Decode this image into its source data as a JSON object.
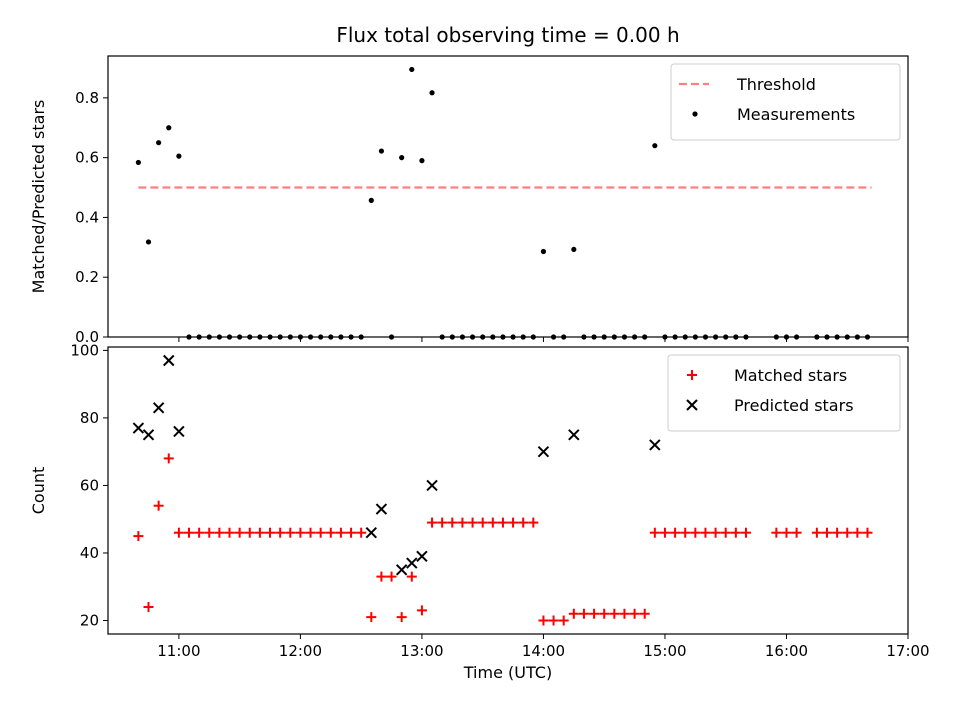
{
  "chart_data": [
    {
      "type": "scatter",
      "title": "Flux total observing time = 0.00 h",
      "xlabel": "",
      "ylabel": "Matched/Predicted stars",
      "xlim": [
        "10:25",
        "17:00"
      ],
      "ylim": [
        0,
        0.94
      ],
      "yticks": [
        0.0,
        0.2,
        0.4,
        0.6,
        0.8
      ],
      "legend_position": "top-right",
      "series": [
        {
          "name": "Threshold",
          "kind": "line",
          "style": "dashed",
          "color": "#ff7f7f",
          "x": [
            "10:40",
            "16:42"
          ],
          "y": [
            0.5,
            0.5
          ]
        },
        {
          "name": "Measurements",
          "kind": "scatter",
          "marker": "dot",
          "color": "#000000",
          "x": [
            "10:40",
            "10:45",
            "10:50",
            "10:55",
            "11:00",
            "11:05",
            "11:10",
            "11:15",
            "11:20",
            "11:25",
            "11:30",
            "11:35",
            "11:40",
            "11:45",
            "11:50",
            "11:55",
            "12:00",
            "12:05",
            "12:10",
            "12:15",
            "12:20",
            "12:25",
            "12:30",
            "12:35",
            "12:40",
            "12:45",
            "12:50",
            "12:55",
            "13:00",
            "13:05",
            "13:10",
            "13:15",
            "13:20",
            "13:25",
            "13:30",
            "13:35",
            "13:40",
            "13:45",
            "13:50",
            "13:55",
            "14:00",
            "14:05",
            "14:10",
            "14:15",
            "14:20",
            "14:25",
            "14:30",
            "14:35",
            "14:40",
            "14:45",
            "14:50",
            "14:55",
            "15:00",
            "15:05",
            "15:10",
            "15:15",
            "15:20",
            "15:25",
            "15:30",
            "15:35",
            "15:40",
            "15:55",
            "16:00",
            "16:05",
            "16:15",
            "16:20",
            "16:25",
            "16:30",
            "16:35",
            "16:40"
          ],
          "y": [
            0.584,
            0.318,
            0.65,
            0.7,
            0.605,
            0,
            0,
            0,
            0,
            0,
            0,
            0,
            0,
            0,
            0,
            0,
            0,
            0,
            0,
            0,
            0,
            0,
            0,
            0.457,
            0.622,
            0,
            0.6,
            0.895,
            0.59,
            0.817,
            0,
            0,
            0,
            0,
            0,
            0,
            0,
            0,
            0,
            0,
            0.286,
            0,
            0,
            0.293,
            0,
            0,
            0,
            0,
            0,
            0,
            0,
            0.64,
            0,
            0,
            0,
            0,
            0,
            0,
            0,
            0,
            0,
            0,
            0,
            0,
            0,
            0,
            0,
            0,
            0,
            0
          ]
        }
      ]
    },
    {
      "type": "scatter",
      "title": "",
      "xlabel": "Time (UTC)",
      "ylabel": "Count",
      "xlim": [
        "10:25",
        "17:00"
      ],
      "ylim": [
        16,
        101
      ],
      "xticks": [
        "11:00",
        "12:00",
        "13:00",
        "14:00",
        "15:00",
        "16:00",
        "17:00"
      ],
      "yticks": [
        20,
        40,
        60,
        80,
        100
      ],
      "legend_position": "top-right",
      "series": [
        {
          "name": "Matched stars",
          "kind": "scatter",
          "marker": "plus",
          "color": "#ff0000",
          "x": [
            "10:40",
            "10:45",
            "10:50",
            "10:55",
            "11:00",
            "11:05",
            "11:10",
            "11:15",
            "11:20",
            "11:25",
            "11:30",
            "11:35",
            "11:40",
            "11:45",
            "11:50",
            "11:55",
            "12:00",
            "12:05",
            "12:10",
            "12:15",
            "12:20",
            "12:25",
            "12:30",
            "12:35",
            "12:40",
            "12:45",
            "12:50",
            "12:55",
            "13:00",
            "13:05",
            "13:10",
            "13:15",
            "13:20",
            "13:25",
            "13:30",
            "13:35",
            "13:40",
            "13:45",
            "13:50",
            "13:55",
            "14:00",
            "14:05",
            "14:10",
            "14:15",
            "14:20",
            "14:25",
            "14:30",
            "14:35",
            "14:40",
            "14:45",
            "14:50",
            "14:55",
            "15:00",
            "15:05",
            "15:10",
            "15:15",
            "15:20",
            "15:25",
            "15:30",
            "15:35",
            "15:40",
            "15:55",
            "16:00",
            "16:05",
            "16:15",
            "16:20",
            "16:25",
            "16:30",
            "16:35",
            "16:40"
          ],
          "y": [
            45,
            24,
            54,
            68,
            46,
            46,
            46,
            46,
            46,
            46,
            46,
            46,
            46,
            46,
            46,
            46,
            46,
            46,
            46,
            46,
            46,
            46,
            46,
            21,
            33,
            33,
            21,
            33,
            23,
            49,
            49,
            49,
            49,
            49,
            49,
            49,
            49,
            49,
            49,
            49,
            20,
            20,
            20,
            22,
            22,
            22,
            22,
            22,
            22,
            22,
            22,
            46,
            46,
            46,
            46,
            46,
            46,
            46,
            46,
            46,
            46,
            46,
            46,
            46,
            46,
            46,
            46,
            46,
            46,
            46
          ]
        },
        {
          "name": "Predicted stars",
          "kind": "scatter",
          "marker": "x",
          "color": "#000000",
          "x": [
            "10:40",
            "10:45",
            "10:50",
            "10:55",
            "11:00",
            "12:35",
            "12:40",
            "12:50",
            "12:55",
            "13:00",
            "13:05",
            "14:00",
            "14:15",
            "14:55"
          ],
          "y": [
            77,
            75,
            83,
            97,
            76,
            46,
            53,
            35,
            37,
            39,
            60,
            70,
            75,
            72
          ]
        }
      ]
    }
  ]
}
